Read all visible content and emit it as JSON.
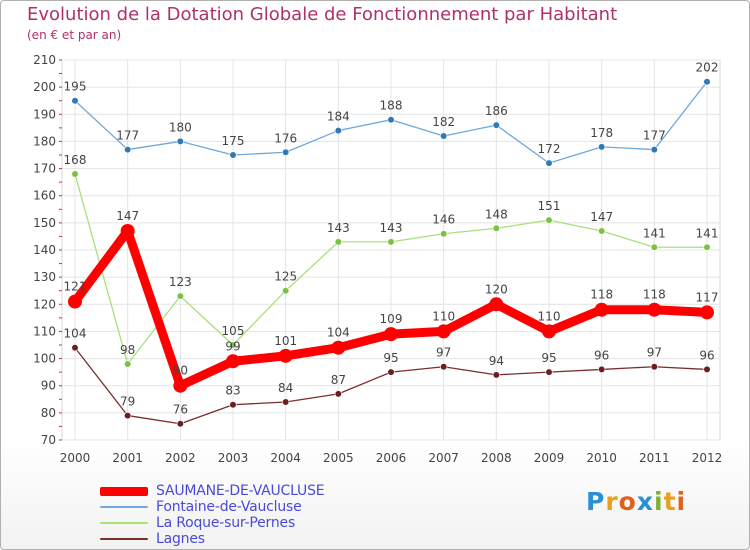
{
  "title": "Evolution de la Dotation Globale de Fonctionnement par Habitant",
  "subtitle": "(en € et par an)",
  "logo": {
    "text": "Proxiti",
    "letters": [
      "P",
      "r",
      "o",
      "x",
      "i",
      "t",
      "i"
    ],
    "colors": [
      "#2a8fd6",
      "#e8a020",
      "#e06020",
      "#2a8fd6",
      "#80b030",
      "#e8a020",
      "#e06020"
    ]
  },
  "chart_data": {
    "type": "line",
    "title": "Evolution de la Dotation Globale de Fonctionnement par Habitant",
    "subtitle": "(en € et par an)",
    "xlabel": "",
    "ylabel": "",
    "ylim": [
      70,
      210
    ],
    "ytick_step": 10,
    "yticks": [
      "70",
      "80",
      "90",
      "100",
      "110",
      "120",
      "130",
      "140",
      "150",
      "160",
      "170",
      "180",
      "190",
      "200",
      "210"
    ],
    "categories": [
      "2000",
      "2001",
      "2002",
      "2003",
      "2004",
      "2005",
      "2006",
      "2007",
      "2008",
      "2009",
      "2010",
      "2011",
      "2012"
    ],
    "grid": true,
    "legend_position": "bottom-left",
    "series": [
      {
        "name": "SAUMANE-DE-VAUCLUSE",
        "color": "#ff0000",
        "marker_color": "#ff0000",
        "emphasis": true,
        "values": [
          121,
          147,
          90,
          99,
          101,
          104,
          109,
          110,
          120,
          110,
          118,
          118,
          117
        ],
        "labels": [
          "121",
          "147",
          "90",
          "99",
          "101",
          "104",
          "109",
          "110",
          "120",
          "110",
          "118",
          "118",
          "117"
        ]
      },
      {
        "name": "Fontaine-de-Vaucluse",
        "color": "#6fa8dc",
        "marker_color": "#2f79b8",
        "emphasis": false,
        "values": [
          195,
          177,
          180,
          175,
          176,
          184,
          188,
          182,
          186,
          172,
          178,
          177,
          202
        ],
        "labels": [
          "195",
          "177",
          "180",
          "175",
          "176",
          "184",
          "188",
          "182",
          "186",
          "172",
          "178",
          "177",
          "202"
        ]
      },
      {
        "name": "La Roque-sur-Pernes",
        "color": "#a8e07a",
        "marker_color": "#7cc242",
        "emphasis": false,
        "values": [
          168,
          98,
          123,
          105,
          125,
          143,
          143,
          146,
          148,
          151,
          147,
          141,
          141
        ],
        "labels": [
          "168",
          "98",
          "123",
          "105",
          "125",
          "143",
          "143",
          "146",
          "148",
          "151",
          "147",
          "141",
          "141"
        ]
      },
      {
        "name": "Lagnes",
        "color": "#7a2e2e",
        "marker_color": "#6a1f1f",
        "emphasis": false,
        "values": [
          104,
          79,
          76,
          83,
          84,
          87,
          95,
          97,
          94,
          95,
          96,
          97,
          96
        ],
        "labels": [
          "104",
          "79",
          "76",
          "83",
          "84",
          "87",
          "95",
          "97",
          "94",
          "95",
          "96",
          "97",
          "96"
        ]
      }
    ]
  }
}
